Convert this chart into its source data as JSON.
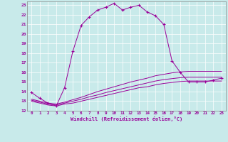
{
  "title": "",
  "xlabel": "Windchill (Refroidissement éolien,°C)",
  "ylabel": "",
  "background_color": "#c8eaea",
  "line_color": "#990099",
  "grid_color": "#ffffff",
  "xlim": [
    -0.5,
    23.5
  ],
  "ylim": [
    12,
    23.4
  ],
  "yticks": [
    12,
    13,
    14,
    15,
    16,
    17,
    18,
    19,
    20,
    21,
    22,
    23
  ],
  "xticks": [
    0,
    1,
    2,
    3,
    4,
    5,
    6,
    7,
    8,
    9,
    10,
    11,
    12,
    13,
    14,
    15,
    16,
    17,
    18,
    19,
    20,
    21,
    22,
    23
  ],
  "series1_x": [
    0,
    1,
    2,
    3,
    4,
    5,
    6,
    7,
    8,
    9,
    10,
    11,
    12,
    13,
    14,
    15,
    16,
    17,
    18,
    19,
    20,
    21,
    22,
    23
  ],
  "series1_y": [
    13.9,
    13.3,
    12.8,
    12.5,
    14.4,
    18.2,
    20.9,
    21.8,
    22.5,
    22.8,
    23.2,
    22.5,
    22.8,
    23.0,
    22.3,
    21.9,
    21.0,
    17.2,
    16.0,
    15.0,
    15.0,
    15.0,
    15.2,
    15.4
  ],
  "series2_x": [
    0,
    1,
    2,
    3,
    4,
    5,
    6,
    7,
    8,
    9,
    10,
    11,
    12,
    13,
    14,
    15,
    16,
    17,
    18,
    19,
    20,
    21,
    22,
    23
  ],
  "series2_y": [
    13.0,
    12.8,
    12.6,
    12.5,
    12.7,
    12.8,
    13.0,
    13.2,
    13.4,
    13.6,
    13.8,
    14.0,
    14.2,
    14.4,
    14.5,
    14.7,
    14.85,
    14.95,
    15.05,
    15.1,
    15.1,
    15.1,
    15.1,
    15.1
  ],
  "series3_x": [
    0,
    1,
    2,
    3,
    4,
    5,
    6,
    7,
    8,
    9,
    10,
    11,
    12,
    13,
    14,
    15,
    16,
    17,
    18,
    19,
    20,
    21,
    22,
    23
  ],
  "series3_y": [
    13.1,
    12.9,
    12.7,
    12.6,
    12.8,
    13.0,
    13.2,
    13.45,
    13.65,
    13.9,
    14.1,
    14.3,
    14.5,
    14.7,
    14.9,
    15.1,
    15.25,
    15.35,
    15.45,
    15.5,
    15.5,
    15.5,
    15.5,
    15.5
  ],
  "series4_x": [
    0,
    1,
    2,
    3,
    4,
    5,
    6,
    7,
    8,
    9,
    10,
    11,
    12,
    13,
    14,
    15,
    16,
    17,
    18,
    19,
    20,
    21,
    22,
    23
  ],
  "series4_y": [
    13.2,
    13.0,
    12.8,
    12.7,
    12.9,
    13.15,
    13.4,
    13.7,
    14.0,
    14.25,
    14.5,
    14.75,
    15.0,
    15.2,
    15.4,
    15.65,
    15.8,
    15.95,
    16.05,
    16.1,
    16.1,
    16.1,
    16.1,
    16.1
  ]
}
